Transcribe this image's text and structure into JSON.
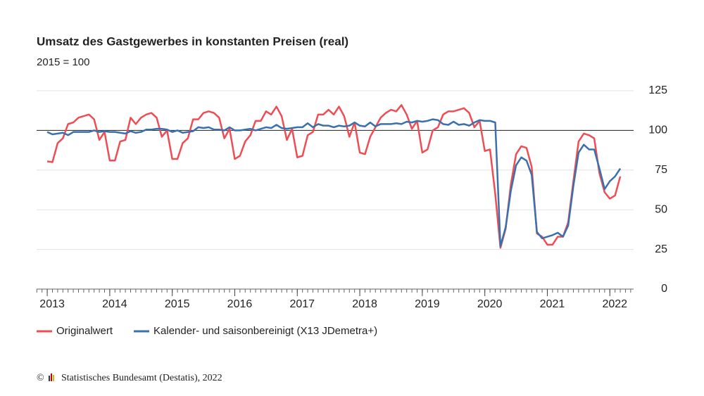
{
  "chart_data": {
    "type": "line",
    "title": "Umsatz des Gastgewerbes in konstanten Preisen (real)",
    "subtitle": "2015 = 100",
    "source": "Statistisches Bundesamt (Destatis), 2022",
    "xlim": [
      2012.83,
      2022.38
    ],
    "xticks": [
      2013,
      2014,
      2015,
      2016,
      2017,
      2018,
      2019,
      2020,
      2021,
      2022
    ],
    "ylim": [
      0,
      125
    ],
    "yticks": [
      0,
      25,
      50,
      75,
      100,
      125
    ],
    "grid": true,
    "reference_line": 100,
    "x": [
      2013,
      2013.0833,
      2013.1667,
      2013.25,
      2013.3333,
      2013.4167,
      2013.5,
      2013.5833,
      2013.6667,
      2013.75,
      2013.8333,
      2013.9167,
      2014,
      2014.0833,
      2014.1667,
      2014.25,
      2014.3333,
      2014.4167,
      2014.5,
      2014.5833,
      2014.6667,
      2014.75,
      2014.8333,
      2014.9167,
      2015,
      2015.0833,
      2015.1667,
      2015.25,
      2015.3333,
      2015.4167,
      2015.5,
      2015.5833,
      2015.6667,
      2015.75,
      2015.8333,
      2015.9167,
      2016,
      2016.0833,
      2016.1667,
      2016.25,
      2016.3333,
      2016.4167,
      2016.5,
      2016.5833,
      2016.6667,
      2016.75,
      2016.8333,
      2016.9167,
      2017,
      2017.0833,
      2017.1667,
      2017.25,
      2017.3333,
      2017.4167,
      2017.5,
      2017.5833,
      2017.6667,
      2017.75,
      2017.8333,
      2017.9167,
      2018,
      2018.0833,
      2018.1667,
      2018.25,
      2018.3333,
      2018.4167,
      2018.5,
      2018.5833,
      2018.6667,
      2018.75,
      2018.8333,
      2018.9167,
      2019,
      2019.0833,
      2019.1667,
      2019.25,
      2019.3333,
      2019.4167,
      2019.5,
      2019.5833,
      2019.6667,
      2019.75,
      2019.8333,
      2019.9167,
      2020,
      2020.0833,
      2020.1667,
      2020.25,
      2020.3333,
      2020.4167,
      2020.5,
      2020.5833,
      2020.6667,
      2020.75,
      2020.8333,
      2020.9167,
      2021,
      2021.0833,
      2021.1667,
      2021.25,
      2021.3333,
      2021.4167,
      2021.5,
      2021.5833,
      2021.6667,
      2021.75,
      2021.8333,
      2021.9167,
      2022,
      2022.0833,
      2022.1667
    ],
    "series": [
      {
        "name": "Originalwert",
        "color": "#ef4d53",
        "values": [
          80.5,
          80,
          92,
          95,
          104,
          105,
          108,
          109,
          110,
          107,
          94,
          99,
          81,
          81,
          93,
          94,
          108,
          104,
          108,
          110,
          111,
          108,
          96,
          100,
          82,
          82,
          92,
          95,
          107,
          107,
          111,
          112,
          111,
          108,
          95,
          101,
          82,
          84,
          93,
          97,
          106,
          106,
          112,
          110,
          115,
          109,
          94,
          101,
          83,
          84,
          97,
          99,
          110,
          110,
          113,
          110,
          115,
          109,
          96,
          105,
          86,
          85,
          96,
          102,
          108,
          111,
          113,
          112,
          116,
          110,
          101,
          106,
          86,
          88,
          100,
          102,
          110,
          112,
          112,
          113,
          114,
          111,
          102,
          106,
          87,
          88,
          60,
          26,
          38,
          66,
          85,
          90,
          89,
          77,
          35,
          33,
          28,
          28,
          33,
          33,
          42,
          68,
          93,
          98,
          97,
          95,
          73,
          61,
          57,
          59,
          71
        ]
      },
      {
        "name": "Kalender- und saisonbereinigt (X13 JDemetra+)",
        "color": "#3a70ad",
        "values": [
          99,
          97.5,
          98,
          98.5,
          97,
          99,
          99,
          99,
          99,
          100,
          99,
          99.5,
          99,
          99,
          98.5,
          98,
          99.5,
          98.5,
          99,
          100.5,
          100.5,
          101,
          101,
          100.5,
          99,
          100,
          98.5,
          99,
          99.5,
          102,
          101.5,
          102,
          100.5,
          100.5,
          100,
          102,
          100,
          100,
          100.5,
          101,
          100,
          101,
          102,
          101.5,
          103.5,
          101.5,
          101,
          101.5,
          102,
          102,
          104.5,
          102,
          104,
          103,
          103,
          102,
          103,
          102.5,
          103,
          105,
          103,
          102.5,
          105,
          102.5,
          104,
          104,
          104,
          104.5,
          104,
          105.5,
          105,
          106,
          105.5,
          106,
          107,
          106.5,
          104,
          103.5,
          105.5,
          103.5,
          104,
          103,
          105,
          106.5,
          106,
          106,
          105,
          27,
          39,
          62,
          78,
          83,
          81,
          72,
          36,
          32,
          33,
          34,
          35.5,
          33,
          40,
          65,
          86,
          91,
          88,
          88,
          76,
          63,
          68,
          71,
          76
        ]
      }
    ]
  }
}
